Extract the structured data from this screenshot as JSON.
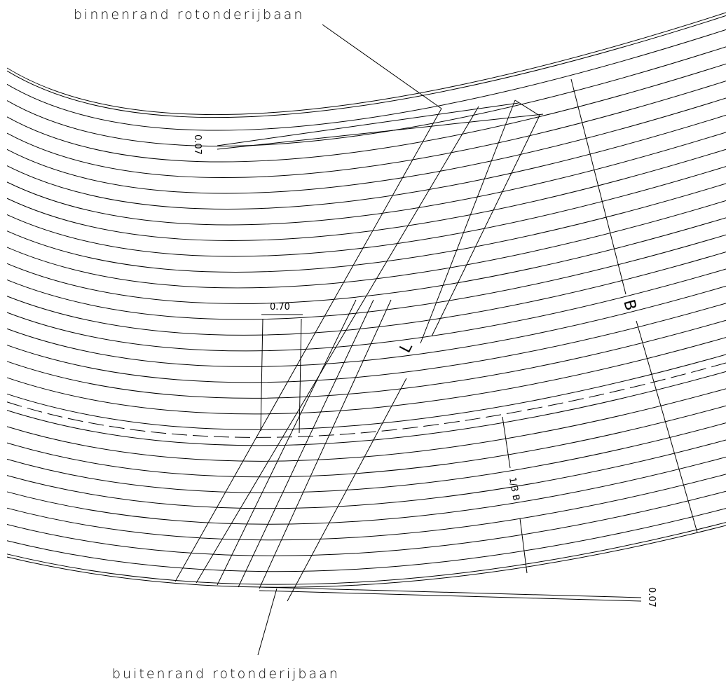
{
  "labels": {
    "inner_edge": "binnenrand rotonderijbaan",
    "outer_edge": "buitenrand rotonderijbaan"
  },
  "dimensions": {
    "inner_offset": "0.07",
    "outer_offset": "0.07",
    "spacing": "0.70",
    "width": "B",
    "length": "L",
    "third_width": "1/3 B"
  }
}
